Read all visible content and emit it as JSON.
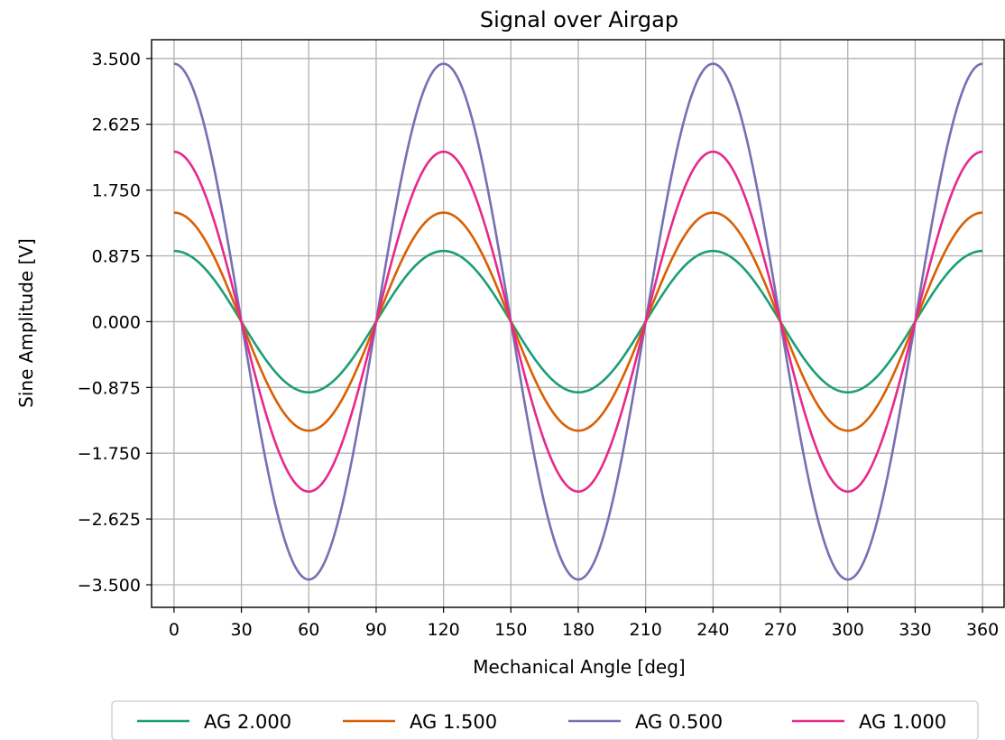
{
  "chart_data": {
    "type": "line",
    "title": "Signal over Airgap",
    "xlabel": "Mechanical Angle [deg]",
    "ylabel": "Sine Amplitude [V]",
    "xlim": [
      -10,
      370
    ],
    "ylim": [
      -3.8,
      3.75
    ],
    "x_ticks": [
      0,
      30,
      60,
      90,
      120,
      150,
      180,
      210,
      240,
      270,
      300,
      330,
      360
    ],
    "y_ticks": [
      3.5,
      2.625,
      1.75,
      0.875,
      0.0,
      -0.875,
      -1.75,
      -2.625,
      -3.5
    ],
    "x_tick_labels": [
      "0",
      "30",
      "60",
      "90",
      "120",
      "150",
      "180",
      "210",
      "240",
      "270",
      "300",
      "330",
      "360"
    ],
    "y_tick_labels": [
      "3.500",
      "2.625",
      "1.750",
      "0.875",
      "0.000",
      "−0.875",
      "−1.750",
      "−2.625",
      "−3.500"
    ],
    "grid": true,
    "legend_position": "bottom-center",
    "waveform": "cosine",
    "period_deg": 120,
    "x_start": 0,
    "x_end": 360,
    "series": [
      {
        "name": "AG 2.000",
        "amplitude": 0.94,
        "color": "#1b9e77"
      },
      {
        "name": "AG 1.500",
        "amplitude": 1.45,
        "color": "#d95f02"
      },
      {
        "name": "AG 0.500",
        "amplitude": 3.43,
        "color": "#7570b3"
      },
      {
        "name": "AG 1.000",
        "amplitude": 2.26,
        "color": "#e7298a"
      }
    ]
  }
}
